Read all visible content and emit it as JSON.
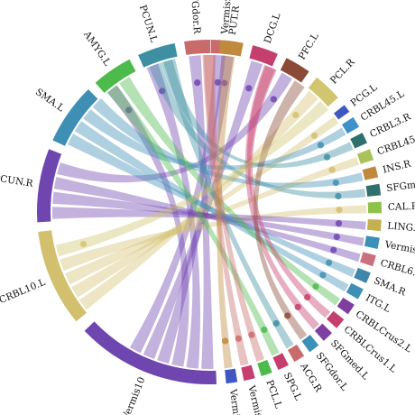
{
  "nodes": [
    {
      "id": "vermis9",
      "label": "Vermis9",
      "color": "#c96b6b",
      "angle": 0,
      "span": 10
    },
    {
      "id": "dcg_l",
      "label": "DCG.L",
      "color": "#c53e6e",
      "angle": 14,
      "span": 10
    },
    {
      "id": "pfc_l",
      "label": "PFC.L",
      "color": "#8b4a36",
      "angle": 26,
      "span": 10
    },
    {
      "id": "pcl_r",
      "label": "PCL.R",
      "color": "#d2c56f",
      "angle": 38,
      "span": 11
    },
    {
      "id": "pcg_l",
      "label": "PCG.L",
      "color": "#3f57c0",
      "angle": 51,
      "span": 4
    },
    {
      "id": "crbl45_l",
      "label": "CRBL45.L",
      "color": "#3f8fca",
      "angle": 56,
      "span": 5
    },
    {
      "id": "crbl3_r",
      "label": "CRBL3.R",
      "color": "#2f6f6d",
      "angle": 62,
      "span": 5
    },
    {
      "id": "crbl45_r",
      "label": "CRBL45.R",
      "color": "#a9c25a",
      "angle": 68,
      "span": 5
    },
    {
      "id": "ins_r",
      "label": "INS.R",
      "color": "#c08a3e",
      "angle": 74,
      "span": 5
    },
    {
      "id": "sfgmed_r",
      "label": "SFGmed.R",
      "color": "#2f6f6d",
      "angle": 80,
      "span": 5
    },
    {
      "id": "cal_r",
      "label": "CAL.R",
      "color": "#8fc24d",
      "angle": 86,
      "span": 5
    },
    {
      "id": "ling_r",
      "label": "LING.R",
      "color": "#c5b04f",
      "angle": 92,
      "span": 5
    },
    {
      "id": "vermis12",
      "label": "Vermis12",
      "color": "#3b90b8",
      "angle": 98,
      "span": 5
    },
    {
      "id": "crbl6_r",
      "label": "CRBL6.R",
      "color": "#cc6f7c",
      "angle": 104,
      "span": 5
    },
    {
      "id": "sma_r",
      "label": "SMA.R",
      "color": "#3f86ab",
      "angle": 110,
      "span": 5
    },
    {
      "id": "itg_l",
      "label": "ITG.L",
      "color": "#3f8fb5",
      "angle": 116,
      "span": 5
    },
    {
      "id": "crblcrus2_l",
      "label": "CRBLCrus2.L",
      "color": "#7e3fa1",
      "angle": 122,
      "span": 5
    },
    {
      "id": "crblcrus1_l",
      "label": "CRBLCrus1.L",
      "color": "#c53e6e",
      "angle": 128,
      "span": 5
    },
    {
      "id": "sfgmed_l",
      "label": "SFGmed.L",
      "color": "#7e3fa1",
      "angle": 134,
      "span": 5
    },
    {
      "id": "sfgdor_l",
      "label": "SFGdor.L",
      "color": "#3b90b8",
      "angle": 140,
      "span": 5
    },
    {
      "id": "acg_r",
      "label": "ACG.R",
      "color": "#c96b6b",
      "angle": 146,
      "span": 5
    },
    {
      "id": "spg_l",
      "label": "SPG.L",
      "color": "#c53e6e",
      "angle": 152,
      "span": 5
    },
    {
      "id": "pcl_l",
      "label": "PCL.L",
      "color": "#4cbb4c",
      "angle": 158,
      "span": 5
    },
    {
      "id": "vermis45",
      "label": "Vermis45",
      "color": "#c53e6e",
      "angle": 164,
      "span": 5
    },
    {
      "id": "vermis8",
      "label": "Vermis8",
      "color": "#3f57c0",
      "angle": 170,
      "span": 5
    },
    {
      "id": "vermis10",
      "label": "Vermis10",
      "color": "#6f45b0",
      "angle": 177,
      "span": 50
    },
    {
      "id": "crbl10_l",
      "label": "CRBL10.L",
      "color": "#d3c06f",
      "angle": 230,
      "span": 34
    },
    {
      "id": "pcun_r",
      "label": "PCUN.R",
      "color": "#6f45b0",
      "angle": 266,
      "span": 26
    },
    {
      "id": "sma_l",
      "label": "SMA.L",
      "color": "#3f8fb5",
      "angle": 294,
      "span": 22
    },
    {
      "id": "amyg_l",
      "label": "AMYG.L",
      "color": "#4cbb4c",
      "angle": 318,
      "span": 15
    },
    {
      "id": "pcun_l",
      "label": "PCUN.L",
      "color": "#3f8fa3",
      "angle": 335,
      "span": 14
    },
    {
      "id": "sfgdor_r",
      "label": "SFGdor.R",
      "color": "#c96b6b",
      "angle": 351,
      "span": 10
    },
    {
      "id": "put_r",
      "label": "PUT.R",
      "color": "#c08a3e",
      "angle": 3,
      "span": 9
    }
  ],
  "links": [
    {
      "source": "vermis10",
      "target": "sfgdor_r"
    },
    {
      "source": "vermis10",
      "target": "pcun_l"
    },
    {
      "source": "vermis10",
      "target": "amyg_l"
    },
    {
      "source": "vermis10",
      "target": "put_r"
    },
    {
      "source": "vermis10",
      "target": "dcg_l"
    },
    {
      "source": "vermis10",
      "target": "vermis9"
    },
    {
      "source": "crbl10_l",
      "target": "pcl_r"
    },
    {
      "source": "crbl10_l",
      "target": "pcg_l"
    },
    {
      "source": "crbl10_l",
      "target": "crbl45_r"
    },
    {
      "source": "crbl10_l",
      "target": "cal_r"
    },
    {
      "source": "pcun_r",
      "target": "ling_r"
    },
    {
      "source": "pcun_r",
      "target": "vermis12"
    },
    {
      "source": "pcun_r",
      "target": "crbl6_r"
    },
    {
      "source": "pcun_r",
      "target": "pfc_l"
    },
    {
      "source": "sma_l",
      "target": "sma_r"
    },
    {
      "source": "sma_l",
      "target": "itg_l"
    },
    {
      "source": "sma_l",
      "target": "crbl45_l"
    },
    {
      "source": "sma_l",
      "target": "ins_r"
    },
    {
      "source": "amyg_l",
      "target": "crblcrus2_l"
    },
    {
      "source": "amyg_l",
      "target": "spg_l"
    },
    {
      "source": "pcun_l",
      "target": "crbl3_r"
    },
    {
      "source": "pcun_l",
      "target": "sfgmed_r"
    },
    {
      "source": "pcun_l",
      "target": "acg_r"
    },
    {
      "source": "sfgdor_r",
      "target": "pcl_l"
    },
    {
      "source": "sfgdor_r",
      "target": "vermis45"
    },
    {
      "source": "put_r",
      "target": "vermis8"
    },
    {
      "source": "dcg_l",
      "target": "crblcrus1_l"
    },
    {
      "source": "dcg_l",
      "target": "sfgmed_l"
    },
    {
      "source": "pfc_l",
      "target": "sfgdor_l"
    },
    {
      "source": "pcl_r",
      "target": "crbl10_l"
    }
  ]
}
